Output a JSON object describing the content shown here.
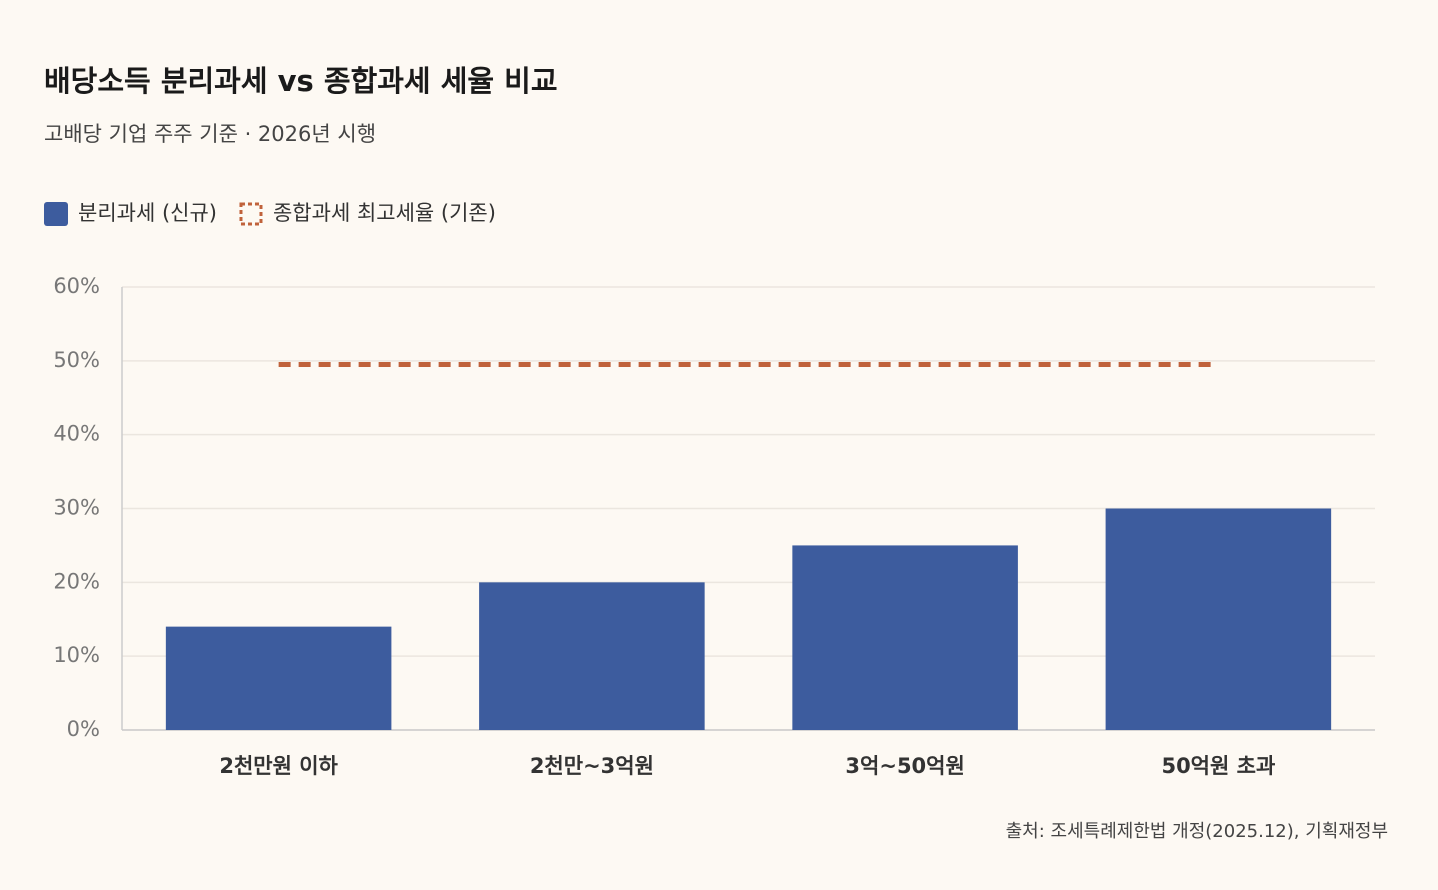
{
  "chart_data": {
    "type": "bar",
    "title": "배당소득 분리과세 vs 종합과세 세율 비교",
    "subtitle": "고배당 기업 주주 기준 · 2026년 시행",
    "categories": [
      "2천만원 이하",
      "2천만~3억원",
      "3억~50억원",
      "50억원 초과"
    ],
    "series": [
      {
        "name": "분리과세 (신규)",
        "color": "#3d5c9e",
        "type": "bar",
        "values": [
          14,
          20,
          25,
          30
        ]
      },
      {
        "name": "종합과세 최고세율 (기존)",
        "color": "#c0623b",
        "type": "line",
        "dashed": true,
        "values": [
          49.5,
          49.5,
          49.5,
          49.5
        ]
      }
    ],
    "ylim": [
      0,
      60
    ],
    "yticks": [
      {
        "value": 0,
        "label": "0%"
      },
      {
        "value": 10,
        "label": "10%"
      },
      {
        "value": 20,
        "label": "20%"
      },
      {
        "value": 30,
        "label": "30%"
      },
      {
        "value": 40,
        "label": "40%"
      },
      {
        "value": 50,
        "label": "50%"
      },
      {
        "value": 60,
        "label": "60%"
      }
    ],
    "grid": true,
    "legend": "top-left",
    "source": "출처: 조세특례제한법 개정(2025.12), 기획재정부"
  }
}
